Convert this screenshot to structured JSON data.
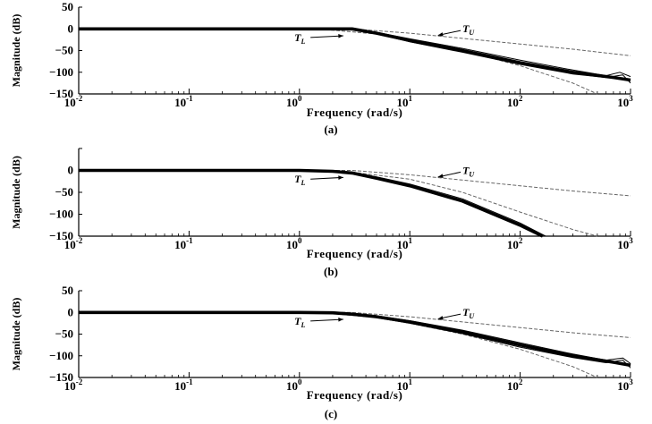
{
  "chart_data": [
    {
      "type": "line",
      "caption": "(a)",
      "xlabel": "Frequency (rad/s)",
      "ylabel": "Magnitude (dB)",
      "xscale": "log",
      "xlim": [
        0.01,
        1000
      ],
      "ylim": [
        -150,
        50
      ],
      "x_ticks": [
        0.01,
        0.1,
        1,
        10,
        100,
        1000
      ],
      "x_tick_labels": [
        {
          "base": "10",
          "exp": "-2"
        },
        {
          "base": "10",
          "exp": "-1"
        },
        {
          "base": "10",
          "exp": "0"
        },
        {
          "base": "10",
          "exp": "1"
        },
        {
          "base": "10",
          "exp": "2"
        },
        {
          "base": "10",
          "exp": "3"
        }
      ],
      "y_ticks": [
        50,
        0,
        -50,
        -100,
        -150
      ],
      "y_tick_labels": [
        "50",
        "0",
        "−50",
        "−100",
        "−150"
      ],
      "annotations": [
        {
          "label": "T",
          "sub": "U",
          "x": 30,
          "y": -8,
          "arrow_to": [
            18,
            -15
          ]
        },
        {
          "label": "T",
          "sub": "L",
          "x": 0.9,
          "y": -28,
          "arrow_to": [
            2.5,
            -16
          ]
        }
      ],
      "bounds": [
        {
          "role": "upper",
          "style": "dashed",
          "x": [
            0.01,
            1,
            3,
            10,
            30,
            100,
            300,
            1000
          ],
          "y": [
            0,
            0,
            0,
            -10,
            -22,
            -35,
            -47,
            -62
          ]
        },
        {
          "role": "lower",
          "style": "dashed",
          "x": [
            0.01,
            1,
            2,
            5,
            10,
            30,
            100,
            300,
            500
          ],
          "y": [
            0,
            0,
            -3,
            -12,
            -25,
            -50,
            -85,
            -125,
            -150
          ]
        }
      ],
      "series": [
        {
          "style": "thick",
          "x": [
            0.01,
            1,
            2,
            3,
            5,
            10,
            30,
            100,
            300,
            700,
            1000
          ],
          "y": [
            0,
            0,
            0,
            0,
            -10,
            -27,
            -50,
            -78,
            -100,
            -112,
            -118
          ]
        },
        {
          "style": "thin",
          "x": [
            0.01,
            1,
            2,
            3,
            5,
            10,
            30,
            100,
            300,
            600,
            800,
            1000
          ],
          "y": [
            0,
            0,
            0,
            0,
            -8,
            -23,
            -45,
            -72,
            -95,
            -108,
            -100,
            -110
          ]
        },
        {
          "style": "thin",
          "x": [
            0.01,
            1,
            2,
            3,
            5,
            10,
            30,
            100,
            300,
            600,
            850,
            1000
          ],
          "y": [
            0,
            0,
            0,
            0,
            -11,
            -30,
            -54,
            -82,
            -104,
            -112,
            -106,
            -125
          ]
        }
      ]
    },
    {
      "type": "line",
      "caption": "(b)",
      "xlabel": "Frequency (rad/s)",
      "ylabel": "Magnitude (dB)",
      "xscale": "log",
      "xlim": [
        0.01,
        1000
      ],
      "ylim": [
        -150,
        50
      ],
      "x_ticks": [
        0.01,
        0.1,
        1,
        10,
        100,
        1000
      ],
      "x_tick_labels": [
        {
          "base": "10",
          "exp": "-2"
        },
        {
          "base": "10",
          "exp": "-1"
        },
        {
          "base": "10",
          "exp": "0"
        },
        {
          "base": "10",
          "exp": "1"
        },
        {
          "base": "10",
          "exp": "2"
        },
        {
          "base": "10",
          "exp": "3"
        }
      ],
      "y_ticks": [
        50,
        0,
        -50,
        -100,
        -150
      ],
      "y_tick_labels": [
        "",
        "0",
        "−50",
        "−100",
        "−150"
      ],
      "annotations": [
        {
          "label": "T",
          "sub": "U",
          "x": 30,
          "y": -8,
          "arrow_to": [
            18,
            -15
          ]
        },
        {
          "label": "T",
          "sub": "L",
          "x": 0.9,
          "y": -28,
          "arrow_to": [
            2.5,
            -16
          ]
        }
      ],
      "bounds": [
        {
          "role": "upper",
          "style": "dashed",
          "x": [
            0.01,
            1,
            3,
            10,
            30,
            100,
            300,
            1000
          ],
          "y": [
            0,
            0,
            0,
            -10,
            -22,
            -35,
            -47,
            -58
          ]
        },
        {
          "role": "lower",
          "style": "dashed",
          "x": [
            0.01,
            1,
            3,
            10,
            30,
            100,
            300,
            500
          ],
          "y": [
            0,
            0,
            -4,
            -20,
            -50,
            -95,
            -135,
            -150
          ]
        }
      ],
      "series": [
        {
          "style": "thick",
          "x": [
            0.01,
            1,
            2,
            3,
            5,
            10,
            30,
            100,
            160
          ],
          "y": [
            0,
            0,
            -2,
            -6,
            -18,
            -35,
            -70,
            -125,
            -150
          ]
        },
        {
          "style": "thin",
          "x": [
            0.01,
            1,
            2,
            3,
            5,
            10,
            30,
            100,
            170
          ],
          "y": [
            0,
            0,
            -1,
            -4,
            -15,
            -31,
            -65,
            -120,
            -150
          ]
        }
      ]
    },
    {
      "type": "line",
      "caption": "(c)",
      "xlabel": "Frequency (rad/s)",
      "ylabel": "Magnitude (dB)",
      "xscale": "log",
      "xlim": [
        0.01,
        1000
      ],
      "ylim": [
        -150,
        50
      ],
      "x_ticks": [
        0.01,
        0.1,
        1,
        10,
        100,
        1000
      ],
      "x_tick_labels": [
        {
          "base": "10",
          "exp": "-2"
        },
        {
          "base": "10",
          "exp": "-1"
        },
        {
          "base": "10",
          "exp": "0"
        },
        {
          "base": "10",
          "exp": "1"
        },
        {
          "base": "10",
          "exp": "2"
        },
        {
          "base": "10",
          "exp": "3"
        }
      ],
      "y_ticks": [
        50,
        0,
        -50,
        -100,
        -150
      ],
      "y_tick_labels": [
        "50",
        "0",
        "−50",
        "−100",
        "−150"
      ],
      "annotations": [
        {
          "label": "T",
          "sub": "U",
          "x": 30,
          "y": -8,
          "arrow_to": [
            18,
            -15
          ]
        },
        {
          "label": "T",
          "sub": "L",
          "x": 0.9,
          "y": -28,
          "arrow_to": [
            2.5,
            -16
          ]
        }
      ],
      "bounds": [
        {
          "role": "upper",
          "style": "dashed",
          "x": [
            0.01,
            1,
            3,
            10,
            30,
            100,
            300,
            1000
          ],
          "y": [
            0,
            0,
            0,
            -10,
            -22,
            -35,
            -47,
            -58
          ]
        },
        {
          "role": "lower",
          "style": "dashed",
          "x": [
            0.01,
            1,
            2,
            5,
            10,
            30,
            100,
            300,
            500
          ],
          "y": [
            0,
            0,
            -3,
            -12,
            -25,
            -50,
            -85,
            -125,
            -150
          ]
        }
      ],
      "series": [
        {
          "style": "thick",
          "x": [
            0.01,
            1,
            2,
            3,
            5,
            10,
            30,
            100,
            300,
            700,
            1000
          ],
          "y": [
            0,
            0,
            -1,
            -4,
            -10,
            -22,
            -45,
            -75,
            -100,
            -115,
            -122
          ]
        },
        {
          "style": "thin",
          "x": [
            0.01,
            1,
            2,
            3,
            5,
            10,
            30,
            100,
            300,
            600,
            850,
            1000
          ],
          "y": [
            0,
            0,
            -1,
            -3,
            -8,
            -19,
            -41,
            -70,
            -96,
            -110,
            -105,
            -118
          ]
        },
        {
          "style": "thin",
          "x": [
            0.01,
            1,
            2,
            3,
            5,
            10,
            30,
            100,
            300,
            600,
            850,
            1000
          ],
          "y": [
            0,
            0,
            -1,
            -5,
            -12,
            -25,
            -49,
            -80,
            -104,
            -116,
            -110,
            -128
          ]
        }
      ]
    }
  ]
}
